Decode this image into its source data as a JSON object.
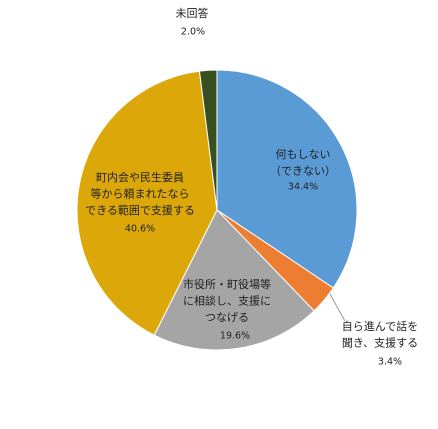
{
  "chart_data": {
    "type": "pie",
    "categories": [
      [
        "何もしない",
        "（できない）"
      ],
      [
        "自ら進んで話を",
        "聞き、支援する"
      ],
      [
        "市役所・町役場等",
        "に相談し、支援に",
        "つなげる"
      ],
      [
        "町内会や民生委員",
        "等から頼まれたなら",
        "できる範囲で支援する"
      ],
      [
        "未回答"
      ]
    ],
    "values": [
      34.4,
      3.4,
      19.6,
      40.6,
      2.0
    ],
    "value_labels": [
      "34.4%",
      "3.4%",
      "19.6%",
      "40.6%",
      "2.0%"
    ],
    "colors": [
      "#5b9bd5",
      "#ed7d31",
      "#a5a5a5",
      "#dca708",
      "#38501f"
    ]
  }
}
